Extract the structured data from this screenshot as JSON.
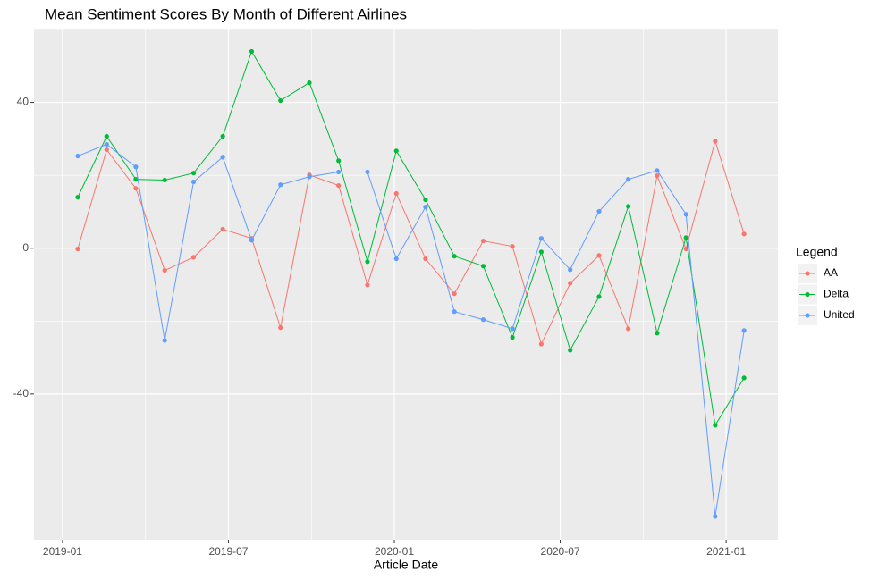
{
  "chart_data": {
    "type": "line",
    "title": "Mean Sentiment Scores By Month of Different Airlines",
    "x_label": "Article Date",
    "legend_title": "Legend",
    "legend_position": "right",
    "grid": true,
    "x": [
      2019.046,
      2019.133,
      2019.221,
      2019.308,
      2019.395,
      2019.483,
      2019.57,
      2019.657,
      2019.744,
      2019.832,
      2019.919,
      2020.006,
      2020.094,
      2020.181,
      2020.268,
      2020.356,
      2020.443,
      2020.53,
      2020.617,
      2020.705,
      2020.792,
      2020.879,
      2020.967,
      2021.054
    ],
    "series": [
      {
        "name": "AA",
        "color": "#F8766D",
        "values": [
          -0.2,
          27.0,
          16.4,
          -6.1,
          -2.5,
          5.2,
          2.7,
          -21.8,
          20.1,
          17.2,
          -10.1,
          15.0,
          -2.9,
          -12.5,
          2.0,
          0.5,
          -26.3,
          -9.6,
          -2.0,
          -22.1,
          19.9,
          -0.2,
          29.4,
          3.9
        ]
      },
      {
        "name": "Delta",
        "color": "#00BA38",
        "values": [
          14.0,
          30.7,
          18.9,
          18.7,
          20.6,
          30.7,
          54.0,
          40.5,
          45.4,
          24.0,
          -3.7,
          26.7,
          13.3,
          -2.2,
          -4.9,
          -24.5,
          -1.0,
          -28.0,
          -13.3,
          11.5,
          -23.3,
          2.9,
          -48.6,
          -35.6
        ]
      },
      {
        "name": "United",
        "color": "#619CFF",
        "values": [
          25.3,
          28.5,
          22.3,
          -25.3,
          18.2,
          25.0,
          2.2,
          17.4,
          19.6,
          20.9,
          20.9,
          -2.9,
          11.3,
          -17.4,
          -19.6,
          -22.1,
          2.7,
          -5.9,
          10.1,
          18.9,
          21.3,
          9.3,
          -73.6,
          -22.6
        ]
      }
    ],
    "xlim": [
      2018.914,
      2021.156
    ],
    "xticks": [
      {
        "value": 2019,
        "label": "2019-01"
      },
      {
        "value": 2019.5,
        "label": "2019-07"
      },
      {
        "value": 2020,
        "label": "2020-01"
      },
      {
        "value": 2020.5,
        "label": "2020-07"
      },
      {
        "value": 2021,
        "label": "2021-01"
      }
    ],
    "ylim": [
      -80,
      60
    ],
    "yticks": [
      -40,
      0,
      40
    ]
  }
}
